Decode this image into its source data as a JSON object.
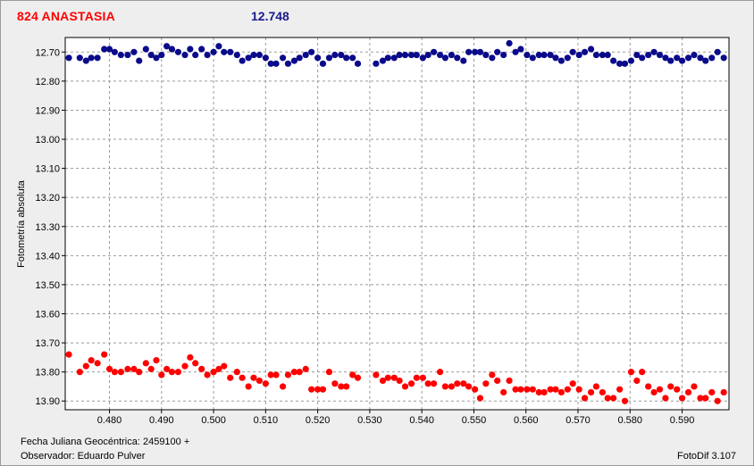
{
  "header": {
    "object_name": "824 ANASTASIA",
    "magnitude": "12.748"
  },
  "footer": {
    "jd_label": "Fecha Juliana Geocéntrica: 2459100 +",
    "observer_label": "Observador: Eduardo Pulver",
    "software": "FotoDif 3.107"
  },
  "colors": {
    "object_series": "#0a0a8a",
    "comparison_series": "#ff0000",
    "plot_background": "#ffffff",
    "grid": "#9a9a9a"
  },
  "chart_data": {
    "type": "scatter",
    "ylabel": "Fotometría absoluta",
    "xlim": [
      0.4715,
      0.599
    ],
    "ylim": [
      13.93,
      12.65
    ],
    "y_inverted": true,
    "grid": true,
    "legend": "none",
    "xticks": [
      0.48,
      0.49,
      0.5,
      0.51,
      0.52,
      0.53,
      0.54,
      0.55,
      0.56,
      0.57,
      0.58,
      0.59
    ],
    "xtick_labels": [
      "0.480",
      "0.490",
      "0.500",
      "0.510",
      "0.520",
      "0.530",
      "0.540",
      "0.550",
      "0.560",
      "0.570",
      "0.580",
      "0.590"
    ],
    "yticks": [
      12.7,
      12.8,
      12.9,
      13.0,
      13.1,
      13.2,
      13.3,
      13.4,
      13.5,
      13.6,
      13.7,
      13.8,
      13.9
    ],
    "ytick_labels": [
      "12.70",
      "12.80",
      "12.90",
      "13.00",
      "13.10",
      "13.20",
      "13.30",
      "13.40",
      "13.50",
      "13.60",
      "13.70",
      "13.80",
      "13.90"
    ],
    "series": [
      {
        "x": [
          0.4722,
          0.4743,
          0.4755,
          0.4765,
          0.4777,
          0.479,
          0.48,
          0.481,
          0.4822,
          0.4835,
          0.4847,
          0.4857,
          0.487,
          0.488,
          0.489,
          0.49,
          0.491,
          0.492,
          0.4932,
          0.4945,
          0.4955,
          0.4965,
          0.4977,
          0.4988,
          0.5,
          0.501,
          0.502,
          0.5032,
          0.5045,
          0.5055,
          0.5067,
          0.5077,
          0.5088,
          0.51,
          0.511,
          0.512,
          0.5133,
          0.5143,
          0.5155,
          0.5165,
          0.5177,
          0.5188,
          0.52,
          0.521,
          0.5222,
          0.5233,
          0.5245,
          0.5255,
          0.5267,
          0.5277,
          0.5312,
          0.5325,
          0.5335,
          0.5347,
          0.5357,
          0.5368,
          0.538,
          0.539,
          0.5402,
          0.5412,
          0.5423,
          0.5435,
          0.5445,
          0.5457,
          0.5468,
          0.548,
          0.549,
          0.5502,
          0.5512,
          0.5523,
          0.5535,
          0.5545,
          0.5557,
          0.5568,
          0.558,
          0.559,
          0.5602,
          0.5613,
          0.5625,
          0.5635,
          0.5647,
          0.5657,
          0.5668,
          0.568,
          0.569,
          0.5702,
          0.5713,
          0.5725,
          0.5735,
          0.5747,
          0.5757,
          0.5768,
          0.578,
          0.579,
          0.5802,
          0.5813,
          0.5823,
          0.5835,
          0.5846,
          0.5857,
          0.5868,
          0.5878,
          0.589,
          0.59,
          0.5912,
          0.5923,
          0.5935,
          0.5945,
          0.5957,
          0.5968,
          0.598
        ],
        "values": [
          12.72,
          12.72,
          12.73,
          12.72,
          12.72,
          12.69,
          12.69,
          12.7,
          12.71,
          12.71,
          12.7,
          12.73,
          12.69,
          12.71,
          12.72,
          12.71,
          12.68,
          12.69,
          12.7,
          12.71,
          12.69,
          12.71,
          12.69,
          12.71,
          12.7,
          12.68,
          12.7,
          12.7,
          12.71,
          12.73,
          12.72,
          12.71,
          12.71,
          12.72,
          12.74,
          12.74,
          12.72,
          12.74,
          12.73,
          12.72,
          12.71,
          12.7,
          12.72,
          12.74,
          12.72,
          12.71,
          12.71,
          12.72,
          12.72,
          12.74,
          12.74,
          12.73,
          12.72,
          12.72,
          12.71,
          12.71,
          12.71,
          12.71,
          12.72,
          12.71,
          12.7,
          12.71,
          12.72,
          12.71,
          12.72,
          12.73,
          12.7,
          12.7,
          12.7,
          12.71,
          12.72,
          12.7,
          12.71,
          12.67,
          12.7,
          12.69,
          12.71,
          12.72,
          12.71,
          12.71,
          12.71,
          12.72,
          12.73,
          12.72,
          12.7,
          12.71,
          12.7,
          12.69,
          12.71,
          12.71,
          12.71,
          12.73,
          12.74,
          12.74,
          12.73,
          12.71,
          12.72,
          12.71,
          12.7,
          12.71,
          12.72,
          12.73,
          12.72,
          12.73,
          12.72,
          12.71,
          12.72,
          12.73,
          12.72,
          12.7,
          12.72
        ],
        "color": "#0a0a8a"
      },
      {
        "x": [
          0.4722,
          0.4743,
          0.4755,
          0.4765,
          0.4777,
          0.479,
          0.48,
          0.481,
          0.4822,
          0.4835,
          0.4847,
          0.4857,
          0.487,
          0.488,
          0.489,
          0.49,
          0.491,
          0.492,
          0.4932,
          0.4945,
          0.4955,
          0.4965,
          0.4977,
          0.4988,
          0.5,
          0.501,
          0.502,
          0.5032,
          0.5045,
          0.5055,
          0.5067,
          0.5077,
          0.5088,
          0.51,
          0.511,
          0.512,
          0.5133,
          0.5143,
          0.5155,
          0.5165,
          0.5177,
          0.5188,
          0.52,
          0.521,
          0.5222,
          0.5233,
          0.5245,
          0.5255,
          0.5267,
          0.5277,
          0.5312,
          0.5325,
          0.5335,
          0.5347,
          0.5357,
          0.5368,
          0.538,
          0.539,
          0.5402,
          0.5412,
          0.5423,
          0.5435,
          0.5445,
          0.5457,
          0.5468,
          0.548,
          0.549,
          0.5502,
          0.5512,
          0.5523,
          0.5535,
          0.5545,
          0.5557,
          0.5568,
          0.558,
          0.559,
          0.5602,
          0.5613,
          0.5625,
          0.5635,
          0.5647,
          0.5657,
          0.5668,
          0.568,
          0.569,
          0.5702,
          0.5713,
          0.5725,
          0.5735,
          0.5747,
          0.5757,
          0.5768,
          0.578,
          0.579,
          0.5802,
          0.5813,
          0.5823,
          0.5835,
          0.5846,
          0.5857,
          0.5868,
          0.5878,
          0.589,
          0.59,
          0.5912,
          0.5923,
          0.5935,
          0.5945,
          0.5957,
          0.5968,
          0.598
        ],
        "values": [
          13.74,
          13.8,
          13.78,
          13.76,
          13.77,
          13.74,
          13.79,
          13.8,
          13.8,
          13.79,
          13.79,
          13.8,
          13.77,
          13.79,
          13.76,
          13.81,
          13.79,
          13.8,
          13.8,
          13.78,
          13.75,
          13.77,
          13.79,
          13.81,
          13.8,
          13.79,
          13.78,
          13.82,
          13.8,
          13.82,
          13.85,
          13.82,
          13.83,
          13.84,
          13.81,
          13.81,
          13.85,
          13.81,
          13.8,
          13.8,
          13.79,
          13.86,
          13.86,
          13.86,
          13.8,
          13.84,
          13.85,
          13.85,
          13.81,
          13.82,
          13.81,
          13.83,
          13.82,
          13.82,
          13.83,
          13.85,
          13.84,
          13.82,
          13.82,
          13.84,
          13.84,
          13.8,
          13.85,
          13.85,
          13.84,
          13.84,
          13.85,
          13.86,
          13.89,
          13.84,
          13.81,
          13.83,
          13.87,
          13.83,
          13.86,
          13.86,
          13.86,
          13.86,
          13.87,
          13.87,
          13.86,
          13.86,
          13.87,
          13.86,
          13.84,
          13.86,
          13.89,
          13.87,
          13.85,
          13.87,
          13.89,
          13.89,
          13.86,
          13.9,
          13.8,
          13.83,
          13.8,
          13.85,
          13.87,
          13.86,
          13.89,
          13.85,
          13.86,
          13.89,
          13.87,
          13.85,
          13.89,
          13.89,
          13.87,
          13.9,
          13.87
        ],
        "color": "#ff0000"
      }
    ]
  }
}
